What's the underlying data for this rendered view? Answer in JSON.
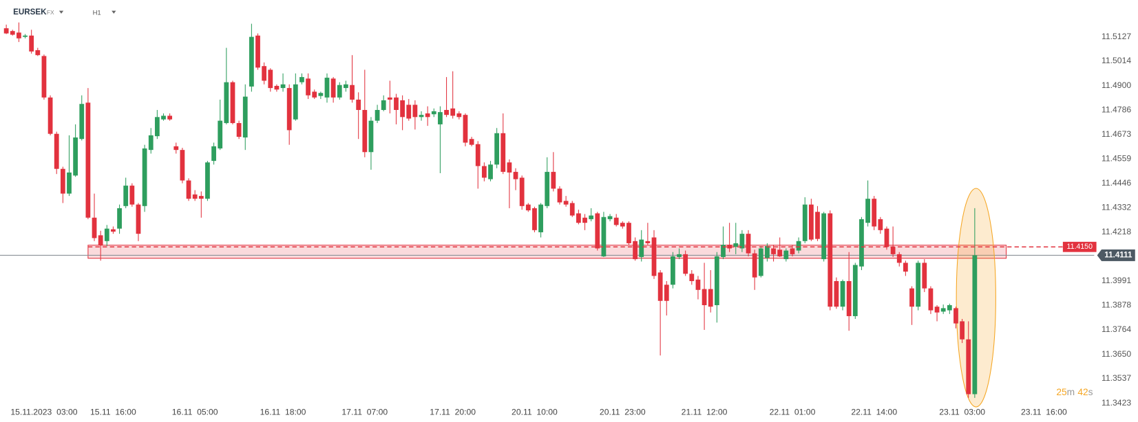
{
  "header": {
    "symbol": "EURSEK",
    "market": "FX",
    "timeframe": "H1"
  },
  "countdown": [
    "25",
    "m",
    "42",
    "s"
  ],
  "chart_data": {
    "type": "candlestick",
    "up_color": "#2e9e5e",
    "down_color": "#e2323e",
    "xlim": [
      -1,
      173
    ],
    "ylim": [
      11.3399,
      11.5296
    ],
    "xticks": [
      {
        "value": 6,
        "label": "15.11.2023  03:00"
      },
      {
        "value": 17,
        "label": "15.11  16:00"
      },
      {
        "value": 30,
        "label": "16.11  05:00"
      },
      {
        "value": 44,
        "label": "16.11  18:00"
      },
      {
        "value": 57,
        "label": "17.11  07:00"
      },
      {
        "value": 71,
        "label": "17.11  20:00"
      },
      {
        "value": 84,
        "label": "20.11  10:00"
      },
      {
        "value": 98,
        "label": "20.11  23:00"
      },
      {
        "value": 111,
        "label": "21.11  12:00"
      },
      {
        "value": 125,
        "label": "22.11  01:00"
      },
      {
        "value": 138,
        "label": "22.11  14:00"
      },
      {
        "value": 152,
        "label": "23.11  03:00"
      },
      {
        "value": 165,
        "label": "23.11  16:00"
      }
    ],
    "yticks": [
      11.5127,
      11.5014,
      {
        "value": 11.49,
        "label": "11.4900"
      },
      11.4786,
      11.4673,
      11.4559,
      11.4446,
      11.4332,
      11.4218,
      11.3991,
      11.3878,
      11.3764,
      {
        "value": 11.365,
        "label": "11.3650"
      },
      11.3537,
      11.3423
    ],
    "open": [
      11.5167,
      11.5154,
      11.5147,
      11.5127,
      11.5133,
      11.5065,
      11.5038,
      11.4845,
      11.4676,
      11.4513,
      11.4398,
      11.4482,
      11.4652,
      11.4821,
      11.4286,
      11.4204,
      11.4177,
      11.4232,
      11.4235,
      11.434,
      11.4435,
      11.4347,
      11.434,
      11.4601,
      11.4665,
      11.4743,
      11.476,
      11.4618,
      11.4601,
      11.4459,
      11.4394,
      11.4387,
      11.4374,
      11.455,
      11.4608,
      11.4726,
      11.4916,
      11.4726,
      11.4659,
      11.4896,
      11.5133,
      11.4991,
      11.4974,
      11.4899,
      11.4889,
      11.4889,
      11.4743,
      11.4916,
      11.4933,
      11.4872,
      11.4852,
      11.4845,
      11.4933,
      11.4845,
      11.4889,
      11.4903,
      11.4835,
      11.4787,
      11.4591,
      11.4737,
      11.4787,
      11.4845,
      11.4845,
      11.4832,
      11.4811,
      11.4811,
      11.4754,
      11.4771,
      11.4767,
      11.472,
      11.4787,
      11.4794,
      11.4771,
      11.4764,
      11.4652,
      11.4628,
      11.4526,
      11.4465,
      11.4533,
      11.4679,
      11.4543,
      11.4499,
      11.4472,
      11.4347,
      11.433,
      11.4218,
      11.434,
      11.4499,
      11.4421,
      11.4364,
      11.4354,
      11.4306,
      11.4286,
      11.4279,
      11.4306,
      11.4106,
      11.4279,
      11.4286,
      11.4262,
      11.4262,
      11.4177,
      11.4103,
      11.4177,
      11.4194,
      11.4031,
      11.3974,
      11.3974,
      11.4103,
      11.4116,
      11.4025,
      11.3998,
      11.3954,
      11.3954,
      11.3879,
      11.4103,
      11.416,
      11.415,
      11.4143,
      11.4211,
      11.412,
      11.4015,
      11.4099,
      11.4143,
      11.4137,
      11.4093,
      11.4143,
      11.4133,
      11.4177,
      11.4347,
      11.4313,
      11.4093,
      11.4306,
      11.3991,
      11.3872,
      11.3991,
      11.3828,
      11.4059,
      11.4262,
      11.4374,
      11.4279,
      11.4235,
      11.415,
      11.4116,
      11.4076,
      11.3957,
      11.3872,
      11.4076,
      11.3957,
      11.3872,
      11.3849,
      11.3855,
      11.3865,
      11.3804,
      11.372,
      11.3465
    ],
    "high": [
      11.5184,
      11.516,
      11.5194,
      11.514,
      11.516,
      11.5076,
      11.5045,
      11.4855,
      11.4686,
      11.4523,
      11.4669,
      11.472,
      11.4855,
      11.4889,
      11.4398,
      11.4225,
      11.4252,
      11.4245,
      11.4347,
      11.4472,
      11.4446,
      11.4354,
      11.4625,
      11.4703,
      11.4787,
      11.4771,
      11.4771,
      11.4635,
      11.4611,
      11.4469,
      11.4414,
      11.4408,
      11.455,
      11.4635,
      11.4835,
      11.5076,
      11.4923,
      11.4737,
      11.4906,
      11.5188,
      11.5143,
      11.5008,
      11.4981,
      11.4906,
      11.4957,
      11.4906,
      11.4957,
      11.4957,
      11.4957,
      11.4882,
      11.4872,
      11.4957,
      11.494,
      11.4916,
      11.4923,
      11.5042,
      11.4869,
      11.4974,
      11.4754,
      11.4811,
      11.4855,
      11.4923,
      11.4862,
      11.4855,
      11.4838,
      11.4832,
      11.4781,
      11.4804,
      11.4794,
      11.4804,
      11.494,
      11.4967,
      11.4781,
      11.4771,
      11.4662,
      11.4642,
      11.4543,
      11.455,
      11.4703,
      11.4771,
      11.4557,
      11.4516,
      11.4482,
      11.4354,
      11.4337,
      11.4354,
      11.4567,
      11.4591,
      11.4432,
      11.4387,
      11.4364,
      11.4323,
      11.4303,
      11.433,
      11.4313,
      11.4313,
      11.4303,
      11.4303,
      11.4269,
      11.4269,
      11.4194,
      11.4228,
      11.4262,
      11.4228,
      11.4042,
      11.3991,
      11.4126,
      11.4143,
      11.4133,
      11.4042,
      11.4015,
      11.4076,
      11.4042,
      11.4126,
      11.4245,
      11.4262,
      11.4262,
      11.4228,
      11.4228,
      11.4137,
      11.4154,
      11.4167,
      11.416,
      11.4194,
      11.4143,
      11.416,
      11.4194,
      11.4381,
      11.4374,
      11.434,
      11.4313,
      11.432,
      11.4008,
      11.3998,
      11.4126,
      11.4076,
      11.4289,
      11.4459,
      11.4387,
      11.4289,
      11.4245,
      11.4245,
      11.4126,
      11.4086,
      11.3967,
      11.4086,
      11.4093,
      11.3967,
      11.3879,
      11.3882,
      11.3886,
      11.3872,
      11.3815,
      11.3804,
      11.433
    ],
    "low": [
      11.514,
      11.5133,
      11.5103,
      11.512,
      11.5049,
      11.5038,
      11.4835,
      11.4669,
      11.4489,
      11.4354,
      11.4387,
      11.4476,
      11.4645,
      11.4279,
      11.4177,
      11.4086,
      11.4154,
      11.4211,
      11.4211,
      11.433,
      11.4337,
      11.4177,
      11.4313,
      11.4584,
      11.4652,
      11.4737,
      11.4737,
      11.4584,
      11.4446,
      11.4364,
      11.4364,
      11.4286,
      11.4364,
      11.4533,
      11.4601,
      11.472,
      11.472,
      11.4652,
      11.4601,
      11.4872,
      11.4974,
      11.4906,
      11.4872,
      11.4872,
      11.4872,
      11.4625,
      11.4737,
      11.4906,
      11.4838,
      11.4838,
      11.4838,
      11.4821,
      11.4821,
      11.4835,
      11.4872,
      11.4821,
      11.4652,
      11.4567,
      11.4509,
      11.4726,
      11.4781,
      11.4771,
      11.472,
      11.4693,
      11.4737,
      11.4696,
      11.4737,
      11.4713,
      11.4754,
      11.4493,
      11.4754,
      11.4747,
      11.4743,
      11.4618,
      11.4618,
      11.4421,
      11.4455,
      11.4455,
      11.4516,
      11.4489,
      11.433,
      11.4414,
      11.4323,
      11.4313,
      11.4218,
      11.4194,
      11.433,
      11.4408,
      11.4347,
      11.4337,
      11.4289,
      11.4255,
      11.4228,
      11.4269,
      11.4133,
      11.4103,
      11.4269,
      11.4245,
      11.4235,
      11.416,
      11.4086,
      11.4082,
      11.416,
      11.4001,
      11.3645,
      11.3831,
      11.3957,
      11.4093,
      11.4015,
      11.3974,
      11.3906,
      11.3764,
      11.3845,
      11.3798,
      11.4093,
      11.4126,
      11.4116,
      11.4126,
      11.4106,
      11.395,
      11.4008,
      11.4082,
      11.4082,
      11.4103,
      11.4082,
      11.4106,
      11.412,
      11.4167,
      11.4177,
      11.4177,
      11.4082,
      11.3855,
      11.3862,
      11.3855,
      11.376,
      11.3815,
      11.4042,
      11.4245,
      11.4228,
      11.4211,
      11.4137,
      11.4103,
      11.4059,
      11.4015,
      11.3787,
      11.3855,
      11.394,
      11.3838,
      11.3804,
      11.3838,
      11.3838,
      11.3771,
      11.3703,
      11.3448,
      11.3448
    ],
    "close": [
      11.5143,
      11.5137,
      11.512,
      11.5133,
      11.5059,
      11.5042,
      11.4845,
      11.4676,
      11.4513,
      11.4398,
      11.4496,
      11.4659,
      11.4815,
      11.4286,
      11.4191,
      11.4157,
      11.4235,
      11.4221,
      11.433,
      11.4435,
      11.4347,
      11.4211,
      11.4608,
      11.4669,
      11.4754,
      11.476,
      11.4743,
      11.4601,
      11.4459,
      11.4374,
      11.4374,
      11.4374,
      11.4543,
      11.4618,
      11.4737,
      11.4916,
      11.4726,
      11.4662,
      11.4849,
      11.5127,
      11.4984,
      11.4923,
      11.4889,
      11.4882,
      11.4906,
      11.4693,
      11.4906,
      11.494,
      11.4855,
      11.4845,
      11.4866,
      11.4937,
      11.4845,
      11.4903,
      11.4906,
      11.4835,
      11.4787,
      11.4591,
      11.4737,
      11.4787,
      11.4832,
      11.4835,
      11.4787,
      11.4754,
      11.4747,
      11.4754,
      11.4764,
      11.4754,
      11.4781,
      11.4777,
      11.4764,
      11.476,
      11.4754,
      11.4635,
      11.4625,
      11.4526,
      11.4472,
      11.4533,
      11.4679,
      11.4499,
      11.4496,
      11.4465,
      11.434,
      11.432,
      11.4228,
      11.4347,
      11.4499,
      11.4421,
      11.4357,
      11.4347,
      11.4296,
      11.4262,
      11.4262,
      11.4296,
      11.4143,
      11.4289,
      11.4293,
      11.4252,
      11.4245,
      11.4167,
      11.4093,
      11.4184,
      11.4167,
      11.4015,
      11.3899,
      11.3899,
      11.4106,
      11.4116,
      11.4025,
      11.3991,
      11.395,
      11.3879,
      11.3872,
      11.4106,
      11.416,
      11.4143,
      11.4167,
      11.4211,
      11.412,
      11.4008,
      11.4143,
      11.4154,
      11.4116,
      11.4106,
      11.4133,
      11.4116,
      11.4177,
      11.4347,
      11.4184,
      11.4187,
      11.4306,
      11.3872,
      11.3872,
      11.3991,
      11.3828,
      11.4066,
      11.4279,
      11.4374,
      11.4245,
      11.4228,
      11.415,
      11.4116,
      11.4076,
      11.4035,
      11.3872,
      11.4076,
      11.3957,
      11.3855,
      11.3845,
      11.3865,
      11.3879,
      11.3794,
      11.372,
      11.3465,
      11.4111
    ],
    "zone": {
      "low": 11.4097,
      "high": 11.4158,
      "start": 13,
      "end": 159,
      "color": "#e2323e"
    },
    "level": {
      "value": 11.415,
      "label": "11.4150",
      "color": "#e2323e"
    },
    "last_price": {
      "value": 11.4111,
      "label": "11.4111",
      "color": "#4d5963"
    }
  }
}
